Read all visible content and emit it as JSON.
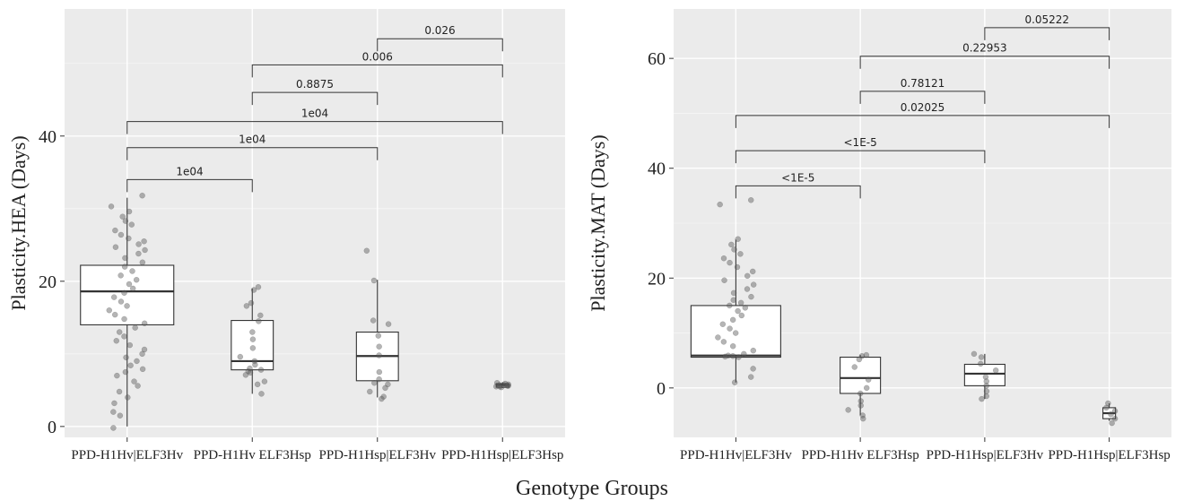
{
  "figure": {
    "shared_xlabel": "Genotype Groups"
  },
  "chart_data": [
    {
      "type": "box",
      "title": "",
      "xlabel": "",
      "ylabel": "Plasticity.HEA (Days)",
      "ylim": [
        -1.5,
        57.5
      ],
      "yticks": [
        0,
        20,
        40
      ],
      "grid": true,
      "categories": [
        "PPD-H1Hv|ELF3Hv",
        "PPD-H1Hv ELF3Hsp",
        "PPD-H1Hsp|ELF3Hv",
        "PPD-H1Hsp|ELF3Hsp"
      ],
      "boxes": [
        {
          "min": 0,
          "q1": 14,
          "median": 18.6,
          "q3": 22.2,
          "max": 31.5
        },
        {
          "min": 4.5,
          "q1": 7.8,
          "median": 9.0,
          "q3": 14.6,
          "max": 19.0
        },
        {
          "min": 4.0,
          "q1": 6.3,
          "median": 9.7,
          "q3": 13.0,
          "max": 20.2
        },
        {
          "min": 5.3,
          "q1": 5.4,
          "median": 5.7,
          "q3": 5.9,
          "max": 6.1
        }
      ],
      "points": [
        [
          31.8,
          30.3,
          29.6,
          28.9,
          28.3,
          27.8,
          27.0,
          26.4,
          25.9,
          25.5,
          25.1,
          24.7,
          24.3,
          23.8,
          23.2,
          22.6,
          22.0,
          21.4,
          20.8,
          20.2,
          19.6,
          19.0,
          18.4,
          17.8,
          17.2,
          16.6,
          16.0,
          15.4,
          14.8,
          14.2,
          13.6,
          13.0,
          12.4,
          11.8,
          11.2,
          10.6,
          10.0,
          9.5,
          9.0,
          8.4,
          7.9,
          7.5,
          7.0,
          6.2,
          5.6,
          4.8,
          4.0,
          3.2,
          2.0,
          1.5,
          -0.2
        ],
        [
          19.2,
          18.8,
          17.0,
          16.6,
          15.3,
          14.5,
          13.0,
          12.0,
          10.8,
          9.6,
          9.0,
          8.5,
          8.0,
          7.8,
          7.6,
          7.4,
          7.1,
          6.2,
          5.8,
          4.5
        ],
        [
          24.2,
          20.1,
          14.6,
          14.1,
          12.5,
          11.0,
          9.8,
          7.5,
          6.5,
          6.0,
          5.8,
          5.3,
          4.8,
          4.1,
          3.8
        ],
        [
          5.4,
          5.5,
          5.6,
          5.7,
          5.8,
          5.9,
          6.0,
          5.6,
          5.5,
          5.7
        ]
      ],
      "annotations": [
        {
          "from": 0,
          "to": 1,
          "y": 34.0,
          "label": "1e04"
        },
        {
          "from": 0,
          "to": 2,
          "y": 38.4,
          "label": "1e04"
        },
        {
          "from": 0,
          "to": 3,
          "y": 42.0,
          "label": "1e04"
        },
        {
          "from": 1,
          "to": 2,
          "y": 46.0,
          "label": "0.8875"
        },
        {
          "from": 1,
          "to": 3,
          "y": 49.8,
          "label": "0.006"
        },
        {
          "from": 2,
          "to": 3,
          "y": 53.4,
          "label": "0.026"
        }
      ]
    },
    {
      "type": "box",
      "title": "",
      "xlabel": "",
      "ylabel": "Plasticity.MAT (Days)",
      "ylim": [
        -9,
        69
      ],
      "yticks": [
        0,
        20,
        40,
        60
      ],
      "grid": true,
      "categories": [
        "PPD-H1Hv|ELF3Hv",
        "PPD-H1Hv ELF3Hsp",
        "PPD-H1Hsp|ELF3Hv",
        "PPD-H1Hsp|ELF3Hsp"
      ],
      "boxes": [
        {
          "min": 1.0,
          "q1": 5.6,
          "median": 5.9,
          "q3": 15.0,
          "max": 27.0
        },
        {
          "min": -5.0,
          "q1": -1.0,
          "median": 1.8,
          "q3": 5.6,
          "max": 6.0
        },
        {
          "min": -2.0,
          "q1": 0.4,
          "median": 2.6,
          "q3": 4.3,
          "max": 6.2
        },
        {
          "min": -6.0,
          "q1": -5.6,
          "median": -4.6,
          "q3": -3.6,
          "max": -2.8
        }
      ],
      "points": [
        [
          34.2,
          33.4,
          27.1,
          26.1,
          25.2,
          24.4,
          23.6,
          22.8,
          22.0,
          21.2,
          20.4,
          19.6,
          18.8,
          18.0,
          17.3,
          16.6,
          16.0,
          15.5,
          15.0,
          14.6,
          14.0,
          13.2,
          12.4,
          11.6,
          10.8,
          10.0,
          9.2,
          8.4,
          7.6,
          6.8,
          6.2,
          5.9,
          5.8,
          5.7,
          5.6,
          3.5,
          2.0,
          1.0
        ],
        [
          6.0,
          5.8,
          5.2,
          3.8,
          1.5,
          0.0,
          -1.0,
          -2.4,
          -3.2,
          -4.0,
          -5.0,
          -5.6
        ],
        [
          6.2,
          5.6,
          4.4,
          3.2,
          2.0,
          1.2,
          0.4,
          -0.6,
          -1.5,
          -2.0
        ],
        [
          -2.8,
          -3.6,
          -4.2,
          -4.8,
          -5.6,
          -6.4
        ]
      ],
      "annotations": [
        {
          "from": 0,
          "to": 1,
          "y": 36.8,
          "label": "<1E-5"
        },
        {
          "from": 0,
          "to": 2,
          "y": 43.2,
          "label": "<1E-5"
        },
        {
          "from": 0,
          "to": 3,
          "y": 49.6,
          "label": "0.02025"
        },
        {
          "from": 1,
          "to": 2,
          "y": 54.0,
          "label": "0.78121"
        },
        {
          "from": 1,
          "to": 3,
          "y": 60.4,
          "label": "0.22953"
        },
        {
          "from": 2,
          "to": 3,
          "y": 65.6,
          "label": "0.05222"
        }
      ]
    }
  ]
}
